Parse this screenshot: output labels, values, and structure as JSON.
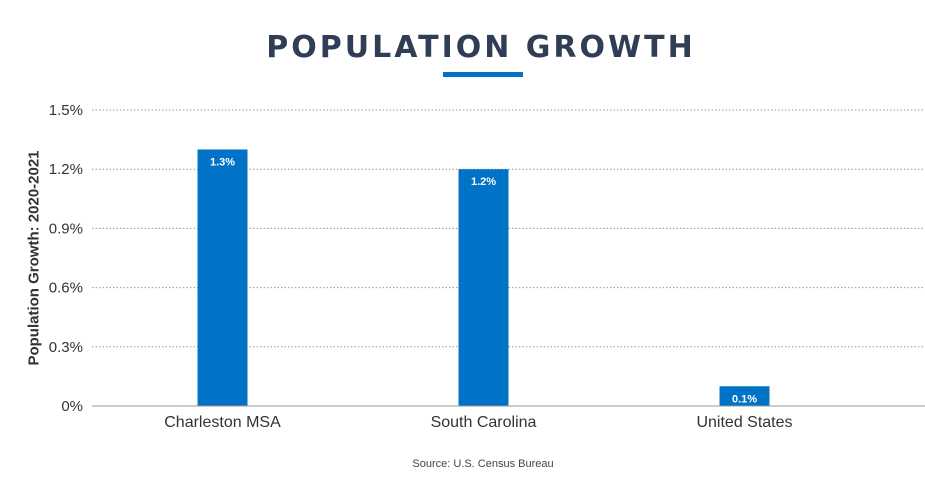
{
  "header": {
    "title": "POPULATION GROWTH"
  },
  "footer": {
    "source": "Source: U.S. Census Bureau"
  },
  "colors": {
    "bar": "#0073c6",
    "title": "#2f3e54",
    "accent": "#0073c6",
    "grid": "#9a9a9a",
    "axis": "#999999"
  },
  "chart_data": {
    "type": "bar",
    "title": "POPULATION GROWTH",
    "xlabel": "",
    "ylabel": "Population Growth: 2020-2021",
    "categories": [
      "Charleston MSA",
      "South Carolina",
      "United States"
    ],
    "values": [
      1.3,
      1.2,
      0.1
    ],
    "data_labels": [
      "1.3%",
      "1.2%",
      "0.1%"
    ],
    "y_ticks": [
      0,
      0.3,
      0.6,
      0.9,
      1.2,
      1.5
    ],
    "y_tick_labels": [
      "0%",
      "0.3%",
      "0.6%",
      "0.9%",
      "1.2%",
      "1.5%"
    ],
    "ylim": [
      0,
      1.5
    ],
    "grid": true,
    "legend": "none",
    "source": "Source: U.S. Census Bureau"
  }
}
